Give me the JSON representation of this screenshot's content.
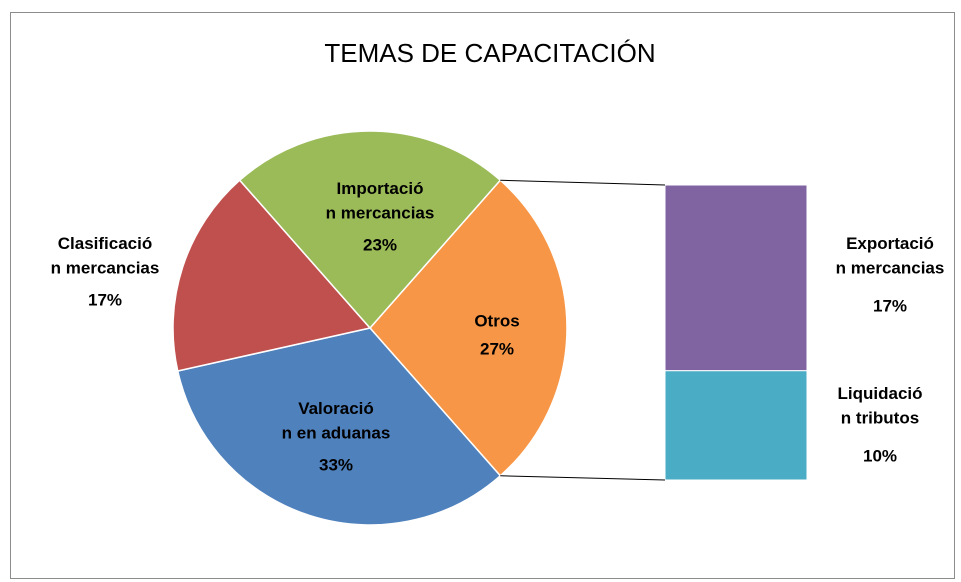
{
  "chart_data": {
    "type": "bar-of-pie",
    "title": "TEMAS DE CAPACITACIÓN",
    "categories": [
      "Otros",
      "Valoración en aduanas",
      "Clasificación mercancias",
      "Importación mercancias"
    ],
    "values": [
      27,
      33,
      17,
      23
    ],
    "value_labels": [
      "27%",
      "33%",
      "17%",
      "23%"
    ],
    "colors": [
      "#f79646",
      "#4f81bd",
      "#c0504d",
      "#9bbb59"
    ],
    "secondary": {
      "categories": [
        "Exportación mercancias",
        "Liquidación tributos"
      ],
      "values": [
        17,
        10
      ],
      "value_labels": [
        "17%",
        "10%"
      ],
      "colors": [
        "#8064a2",
        "#4bacc6"
      ]
    }
  }
}
